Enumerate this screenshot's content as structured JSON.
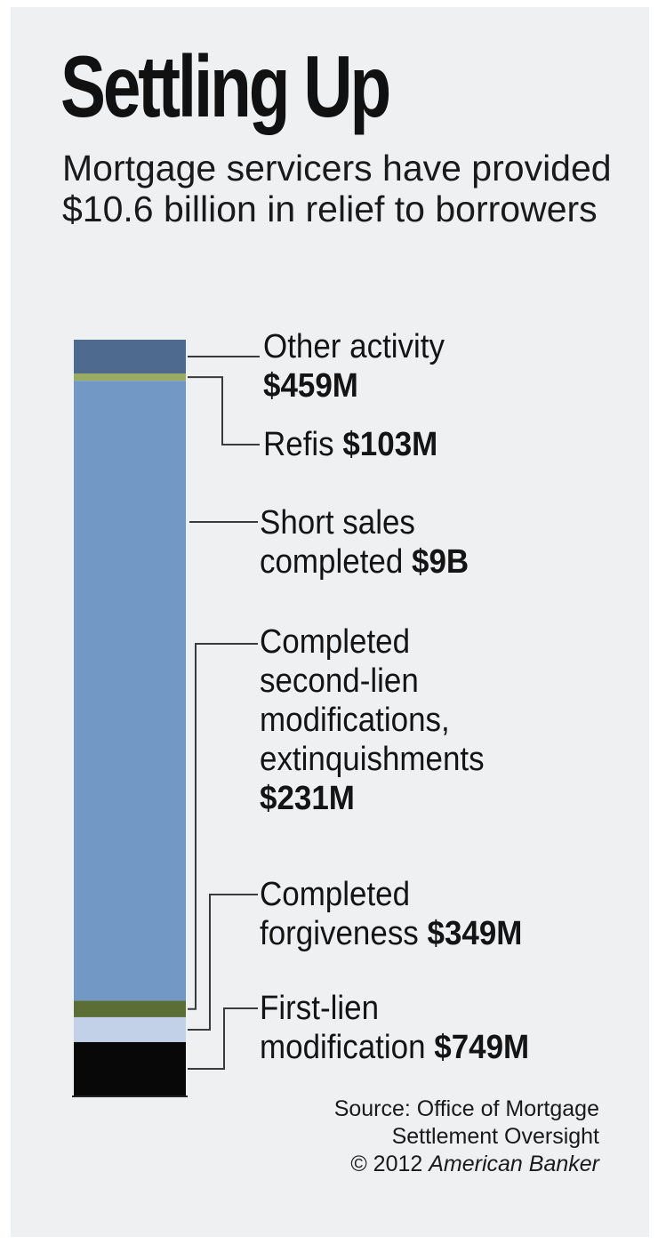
{
  "title": "Settling Up",
  "subtitle": "Mortgage servicers have provided $10.6 billion in relief to borrowers",
  "source": {
    "line1": "Source: Office of Mortgage",
    "line2": "Settlement Oversight",
    "copyright": "© 2012",
    "publisher": "American Banker"
  },
  "chart_data": {
    "type": "bar",
    "subtype": "stacked-single-column",
    "title": "Settling Up",
    "subtitle": "Mortgage servicers have provided $10.6 billion in relief to borrowers",
    "unit": "USD millions",
    "total": 10600,
    "segments": [
      {
        "key": "other",
        "name": "Other activity",
        "value": 459,
        "value_label": "$459M",
        "color": "#4e6a8e"
      },
      {
        "key": "refis",
        "name": "Refis",
        "value": 103,
        "value_label": "$103M",
        "color": "#9aac62"
      },
      {
        "key": "short",
        "name": "Short sales completed",
        "value": 9000,
        "value_label": "$9B",
        "color": "#7299c6"
      },
      {
        "key": "second",
        "name": "Completed second-lien modifications, extinquishments",
        "value": 231,
        "value_label": "$231M",
        "color": "#5b6e35"
      },
      {
        "key": "forgive",
        "name": "Completed forgiveness",
        "value": 349,
        "value_label": "$349M",
        "color": "#c3d1e8"
      },
      {
        "key": "first",
        "name": "First-lien modification",
        "value": 749,
        "value_label": "$749M",
        "color": "#080808"
      }
    ]
  },
  "labels": {
    "other": {
      "lines": [
        "Other activity"
      ],
      "value": "$459M"
    },
    "refis": {
      "lines": [
        "Refis"
      ],
      "value": "$103M"
    },
    "short": {
      "lines": [
        "Short sales",
        "completed"
      ],
      "value": "$9B"
    },
    "second": {
      "lines": [
        "Completed",
        "second-lien",
        "modifications,",
        "extinquishments"
      ],
      "value": "$231M"
    },
    "forgive": {
      "lines": [
        "Completed",
        "forgiveness"
      ],
      "value": "$349M"
    },
    "first": {
      "lines": [
        "First-lien",
        "modification"
      ],
      "value": "$749M"
    }
  }
}
